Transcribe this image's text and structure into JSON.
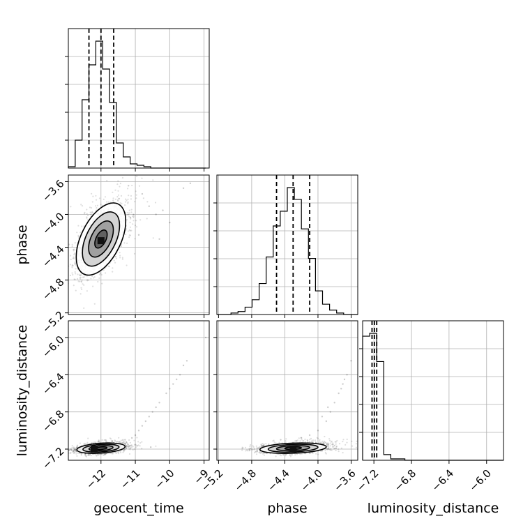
{
  "chart_data": {
    "type": "corner",
    "parameters": [
      "geocent_time",
      "phase",
      "luminosity_distance"
    ],
    "grid": true,
    "ranges": {
      "geocent_time": [
        -12.95,
        -8.85
      ],
      "phase": [
        -5.22,
        -3.52
      ],
      "luminosity_distance": [
        -7.32,
        -5.82
      ]
    },
    "ticks": {
      "geocent_time": [
        -12,
        -11,
        -10,
        -9
      ],
      "phase": [
        -5.2,
        -4.8,
        -4.4,
        -4.0,
        -3.6
      ],
      "luminosity_distance": [
        -7.2,
        -6.8,
        -6.4,
        -6.0
      ]
    },
    "tick_labels": {
      "geocent_time": [
        "−12",
        "−11",
        "−10",
        "−9"
      ],
      "phase": [
        "−5.2",
        "−4.8",
        "−4.4",
        "−4.0",
        "−3.6"
      ],
      "luminosity_distance": [
        "−7.2",
        "−6.8",
        "−6.4",
        "−6.0"
      ]
    },
    "quantiles": {
      "geocent_time": [
        -12.35,
        -12.0,
        -11.63
      ],
      "phase": [
        -4.5,
        -4.3,
        -4.1
      ],
      "luminosity_distance": [
        -7.22,
        -7.195,
        -7.17
      ]
    },
    "histograms": [
      {
        "param": "geocent_time",
        "edges": [
          -12.95,
          -12.75,
          -12.55,
          -12.35,
          -12.15,
          -11.95,
          -11.75,
          -11.55,
          -11.35,
          -11.15,
          -10.95,
          -10.75,
          -10.55,
          -10.35,
          -10.15,
          -9.95,
          -9.75,
          -9.55,
          -9.35,
          -9.15,
          -8.95
        ],
        "counts": [
          1,
          20,
          49,
          74,
          91,
          71,
          47,
          18,
          8,
          3,
          2,
          1,
          0,
          0,
          0,
          0,
          0,
          0,
          0,
          0
        ]
      },
      {
        "param": "phase",
        "edges": [
          -5.22,
          -5.135,
          -5.05,
          -4.965,
          -4.88,
          -4.795,
          -4.71,
          -4.625,
          -4.54,
          -4.455,
          -4.37,
          -4.285,
          -4.2,
          -4.115,
          -4.03,
          -3.945,
          -3.86,
          -3.775,
          -3.69,
          -3.605,
          -3.52
        ],
        "counts": [
          0,
          0,
          1,
          2,
          5,
          10,
          21,
          39,
          60,
          70,
          86,
          78,
          58,
          38,
          16,
          7,
          3,
          1,
          0,
          0
        ]
      },
      {
        "param": "luminosity_distance",
        "edges": [
          -7.32,
          -7.245,
          -7.17,
          -7.095,
          -7.02,
          -6.945,
          -6.87,
          -6.795,
          -6.72,
          -6.645,
          -6.57,
          -6.495,
          -6.42,
          -6.345,
          -6.27,
          -6.195,
          -6.12,
          -6.045,
          -5.97,
          -5.895,
          -5.82
        ],
        "counts": [
          88,
          90,
          70,
          4,
          1,
          1,
          0,
          0,
          0,
          0,
          0,
          0,
          0,
          0,
          0,
          0,
          0,
          0,
          0,
          0
        ]
      }
    ],
    "scatter_panels": [
      {
        "x": "geocent_time",
        "y": "phase",
        "center": [
          -12.0,
          -4.3
        ],
        "spread": [
          0.36,
          0.22
        ],
        "correlation": 0.5,
        "contour_levels_sigma": [
          0.5,
          1.0,
          1.5,
          2.0
        ],
        "peak": [
          -12.0,
          -4.32
        ],
        "extra_points": [
          [
            -10.4,
            -4.0
          ],
          [
            -10.2,
            -3.95
          ],
          [
            -10.8,
            -3.75
          ],
          [
            -9.6,
            -3.68
          ],
          [
            -10.0,
            -4.1
          ],
          [
            -10.6,
            -3.9
          ],
          [
            -9.4,
            -3.62
          ],
          [
            -10.9,
            -4.25
          ],
          [
            -11.2,
            -3.65
          ],
          [
            -10.3,
            -4.3
          ]
        ]
      },
      {
        "x": "geocent_time",
        "y": "luminosity_distance",
        "center": [
          -12.0,
          -7.19
        ],
        "spread": [
          0.35,
          0.028
        ],
        "correlation": 0.3,
        "contour_levels_sigma": [
          0.5,
          1.0,
          1.5,
          2.0
        ],
        "peak": [
          -12.2,
          -7.2
        ],
        "extra_points": [
          [
            -11.0,
            -7.05
          ],
          [
            -10.8,
            -6.95
          ],
          [
            -10.5,
            -6.8
          ],
          [
            -10.3,
            -6.7
          ],
          [
            -10.1,
            -6.6
          ],
          [
            -9.9,
            -6.5
          ],
          [
            -9.7,
            -6.4
          ],
          [
            -9.6,
            -6.3
          ],
          [
            -9.5,
            -6.25
          ],
          [
            -11.3,
            -7.1
          ],
          [
            -10.7,
            -6.9
          ],
          [
            -10.4,
            -6.75
          ],
          [
            -10.9,
            -7.0
          ],
          [
            -10.0,
            -6.55
          ],
          [
            -9.8,
            -6.45
          ],
          [
            -8.95,
            -6.0
          ],
          [
            -11.1,
            -7.08
          ],
          [
            -10.6,
            -6.85
          ]
        ]
      },
      {
        "x": "phase",
        "y": "luminosity_distance",
        "center": [
          -4.3,
          -7.19
        ],
        "spread": [
          0.2,
          0.028
        ],
        "correlation": 0.25,
        "contour_levels_sigma": [
          0.5,
          1.0,
          1.5,
          2.0
        ],
        "peak": [
          -4.3,
          -7.2
        ],
        "extra_points": [
          [
            -4.0,
            -7.0
          ],
          [
            -3.9,
            -6.9
          ],
          [
            -3.85,
            -6.8
          ],
          [
            -3.8,
            -6.7
          ],
          [
            -3.75,
            -6.6
          ],
          [
            -3.7,
            -6.5
          ],
          [
            -3.65,
            -6.4
          ],
          [
            -3.6,
            -6.25
          ],
          [
            -4.1,
            -7.05
          ],
          [
            -3.95,
            -6.85
          ],
          [
            -3.72,
            -6.55
          ],
          [
            -4.2,
            -7.08
          ],
          [
            -3.88,
            -6.75
          ],
          [
            -3.68,
            -6.45
          ],
          [
            -4.45,
            -7.1
          ]
        ]
      }
    ]
  }
}
